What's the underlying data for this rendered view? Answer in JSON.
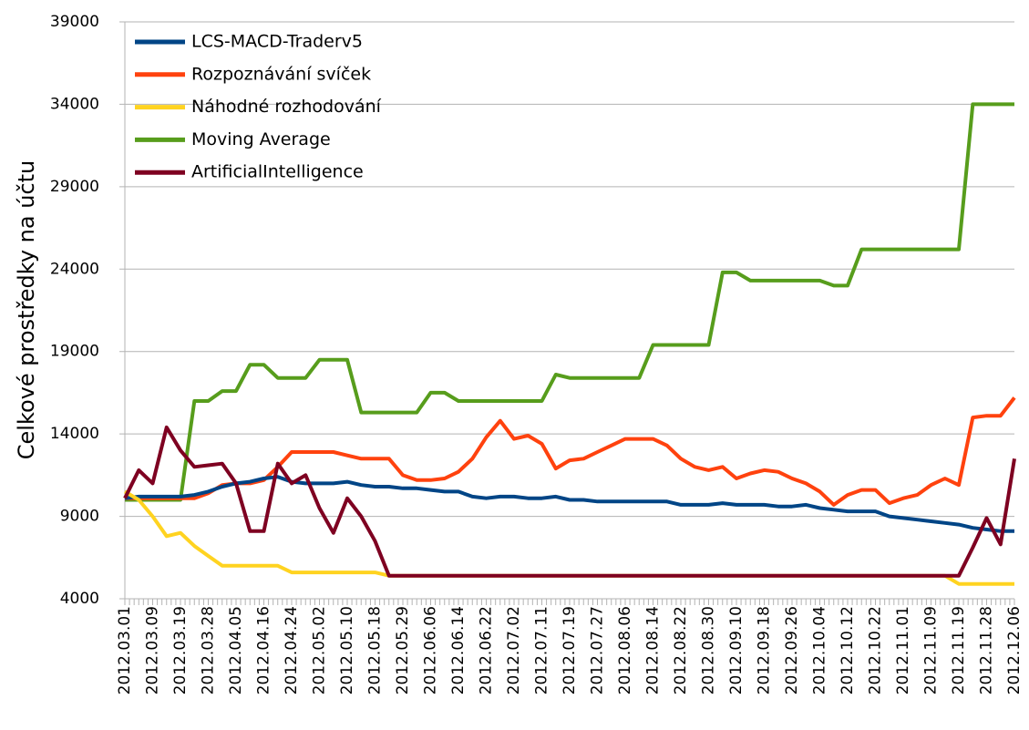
{
  "chart_data": {
    "type": "line",
    "y_label": "Celkové prostředky na účtu",
    "categories": [
      "2012.03.01",
      null,
      "2012.03.09",
      null,
      "2012.03.19",
      null,
      "2012.03.28",
      null,
      "2012.04.05",
      null,
      "2012.04.16",
      null,
      "2012.04.24",
      null,
      "2012.05.02",
      null,
      "2012.05.10",
      null,
      "2012.05.18",
      null,
      "2012.05.29",
      null,
      "2012.06.06",
      null,
      "2012.06.14",
      null,
      "2012.06.22",
      null,
      "2012.07.02",
      null,
      "2012.07.11",
      null,
      "2012.07.19",
      null,
      "2012.07.27",
      null,
      "2012.08.06",
      null,
      "2012.08.14",
      null,
      "2012.08.22",
      null,
      "2012.08.30",
      null,
      "2012.09.10",
      null,
      "2012.09.18",
      null,
      "2012.09.26",
      null,
      "2012.10.04",
      null,
      "2012.10.12",
      null,
      "2012.10.22",
      null,
      "2012.11.01",
      null,
      "2012.11.09",
      null,
      "2012.11.19",
      null,
      "2012.11.28",
      null,
      "2012.12.06"
    ],
    "series": [
      {
        "name": "LCS-MACD-Traderv5",
        "color": "#004586",
        "values": [
          10100,
          10200,
          10200,
          10200,
          10200,
          10300,
          10500,
          10800,
          11000,
          11100,
          11300,
          11400,
          11100,
          11000,
          11000,
          11000,
          11100,
          10900,
          10800,
          10800,
          10700,
          10700,
          10600,
          10500,
          10500,
          10200,
          10100,
          10200,
          10200,
          10100,
          10100,
          10200,
          10000,
          10000,
          9900,
          9900,
          9900,
          9900,
          9900,
          9900,
          9700,
          9700,
          9700,
          9800,
          9700,
          9700,
          9700,
          9600,
          9600,
          9700,
          9500,
          9400,
          9300,
          9300,
          9300,
          9000,
          8900,
          8800,
          8700,
          8600,
          8500,
          8300,
          8200,
          8100,
          8100
        ]
      },
      {
        "name": "Rozpoznávání svíček",
        "color": "#ff420e",
        "values": [
          10100,
          10100,
          10100,
          10100,
          10100,
          10100,
          10400,
          10900,
          11000,
          11000,
          11200,
          12000,
          12900,
          12900,
          12900,
          12900,
          12700,
          12500,
          12500,
          12500,
          11500,
          11200,
          11200,
          11300,
          11700,
          12500,
          13800,
          14800,
          13700,
          13900,
          13400,
          11900,
          12400,
          12500,
          12900,
          13300,
          13700,
          13700,
          13700,
          13300,
          12500,
          12000,
          11800,
          12000,
          11300,
          11600,
          11800,
          11700,
          11300,
          11000,
          10500,
          9700,
          10300,
          10600,
          10600,
          9800,
          10100,
          10300,
          10900,
          11300,
          10900,
          15000,
          15100,
          15100,
          16200
        ]
      },
      {
        "name": "Náhodné rozhodování",
        "color": "#ffd320",
        "values": [
          10500,
          10000,
          9000,
          7800,
          8000,
          7200,
          6600,
          6000,
          6000,
          6000,
          6000,
          6000,
          5600,
          5600,
          5600,
          5600,
          5600,
          5600,
          5600,
          5400,
          5400,
          5400,
          5400,
          5400,
          5400,
          5400,
          5400,
          5400,
          5400,
          5400,
          5400,
          5400,
          5400,
          5400,
          5400,
          5400,
          5400,
          5400,
          5400,
          5400,
          5400,
          5400,
          5400,
          5400,
          5400,
          5400,
          5400,
          5400,
          5400,
          5400,
          5400,
          5400,
          5400,
          5400,
          5400,
          5400,
          5400,
          5400,
          5400,
          5400,
          4900,
          4900,
          4900,
          4900,
          4900
        ]
      },
      {
        "name": "Moving Average",
        "color": "#579d1c",
        "values": [
          10000,
          10000,
          10000,
          10000,
          10000,
          16000,
          16000,
          16600,
          16600,
          18200,
          18200,
          17400,
          17400,
          17400,
          18500,
          18500,
          18500,
          15300,
          15300,
          15300,
          15300,
          15300,
          16500,
          16500,
          16000,
          16000,
          16000,
          16000,
          16000,
          16000,
          16000,
          17600,
          17400,
          17400,
          17400,
          17400,
          17400,
          17400,
          19400,
          19400,
          19400,
          19400,
          19400,
          23800,
          23800,
          23300,
          23300,
          23300,
          23300,
          23300,
          23300,
          23000,
          23000,
          25200,
          25200,
          25200,
          25200,
          25200,
          25200,
          25200,
          25200,
          34000,
          34000,
          34000,
          34000
        ]
      },
      {
        "name": "ArtificialIntelligence",
        "color": "#7e0021",
        "values": [
          10100,
          11800,
          11000,
          14400,
          13000,
          12000,
          12100,
          12200,
          11000,
          8100,
          8100,
          12200,
          11000,
          11500,
          9500,
          8000,
          10100,
          9000,
          7500,
          5400,
          5400,
          5400,
          5400,
          5400,
          5400,
          5400,
          5400,
          5400,
          5400,
          5400,
          5400,
          5400,
          5400,
          5400,
          5400,
          5400,
          5400,
          5400,
          5400,
          5400,
          5400,
          5400,
          5400,
          5400,
          5400,
          5400,
          5400,
          5400,
          5400,
          5400,
          5400,
          5400,
          5400,
          5400,
          5400,
          5400,
          5400,
          5400,
          5400,
          5400,
          5400,
          7100,
          8900,
          7300,
          12500
        ]
      }
    ],
    "ylim": [
      4000,
      39000
    ],
    "yticks": [
      4000,
      9000,
      14000,
      19000,
      24000,
      29000,
      34000,
      39000
    ],
    "grid": true,
    "legend": "upper left"
  }
}
